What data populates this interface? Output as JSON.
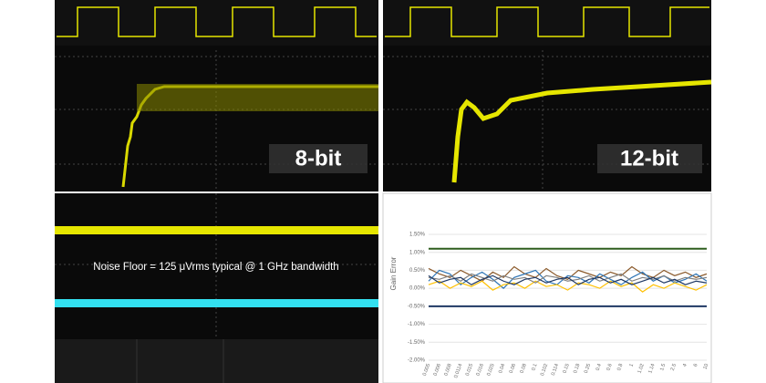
{
  "panels": {
    "top_left": {
      "label": "8-bit"
    },
    "top_right": {
      "label": "12-bit"
    },
    "bottom_left": {
      "caption": "Noise Floor = 125 μVrms typical @ 1 GHz bandwidth"
    }
  },
  "chart_data": {
    "type": "line",
    "ylabel": "Gain Error",
    "ylim": [
      -2.0,
      1.5
    ],
    "yticks": [
      {
        "value": 1.5,
        "label": "1.50%"
      },
      {
        "value": 1.0,
        "label": "1.00%"
      },
      {
        "value": 0.5,
        "label": "0.50%"
      },
      {
        "value": 0.0,
        "label": "0.00%"
      },
      {
        "value": -0.5,
        "label": "-0.50%"
      },
      {
        "value": -1.0,
        "label": "-1.00%"
      },
      {
        "value": -1.5,
        "label": "-1.50%"
      },
      {
        "value": -2.0,
        "label": "-2.00%"
      }
    ],
    "categories": [
      "0.005",
      "0.006",
      "0.008",
      "0.0114",
      "0.015",
      "0.016",
      "0.025",
      "0.04",
      "0.06",
      "0.08",
      "0.1",
      "0.102",
      "0.114",
      "0.15",
      "0.18",
      "0.25",
      "0.4",
      "0.6",
      "0.8",
      "1",
      "1.02",
      "1.14",
      "1.5",
      "2.5",
      "4",
      "6",
      "10"
    ],
    "limit_lines": [
      {
        "value": 1.1,
        "color": "#2e5e1e"
      },
      {
        "value": -0.5,
        "color": "#1f3864"
      }
    ],
    "series": [
      {
        "color": "#8b5a2b",
        "values": [
          0.55,
          0.4,
          0.3,
          0.5,
          0.35,
          0.2,
          0.45,
          0.3,
          0.6,
          0.4,
          0.3,
          0.55,
          0.35,
          0.25,
          0.5,
          0.4,
          0.3,
          0.45,
          0.35,
          0.6,
          0.4,
          0.3,
          0.5,
          0.35,
          0.45,
          0.3,
          0.4
        ]
      },
      {
        "color": "#2e75b6",
        "values": [
          0.2,
          0.5,
          0.4,
          0.1,
          0.3,
          0.45,
          0.25,
          0.0,
          0.3,
          0.4,
          0.5,
          0.2,
          0.1,
          0.35,
          0.3,
          0.15,
          0.4,
          0.25,
          0.1,
          0.3,
          0.45,
          0.2,
          0.35,
          0.15,
          0.25,
          0.4,
          0.2
        ]
      },
      {
        "color": "#ffc000",
        "values": [
          0.1,
          0.2,
          0.0,
          0.15,
          0.05,
          0.2,
          -0.05,
          0.1,
          0.15,
          0.0,
          0.2,
          0.05,
          0.1,
          -0.05,
          0.15,
          0.1,
          0.0,
          0.2,
          0.05,
          0.15,
          -0.1,
          0.1,
          0.0,
          0.15,
          0.05,
          -0.05,
          0.1
        ]
      },
      {
        "color": "#7f7f7f",
        "values": [
          0.3,
          0.25,
          0.35,
          0.2,
          0.4,
          0.3,
          0.2,
          0.35,
          0.25,
          0.3,
          0.15,
          0.35,
          0.3,
          0.2,
          0.25,
          0.35,
          0.2,
          0.3,
          0.4,
          0.2,
          0.3,
          0.25,
          0.35,
          0.2,
          0.3,
          0.25,
          0.3
        ]
      },
      {
        "color": "#1f3864",
        "values": [
          0.35,
          0.15,
          0.25,
          0.3,
          0.1,
          0.25,
          0.35,
          0.2,
          0.1,
          0.25,
          0.3,
          0.15,
          0.25,
          0.3,
          0.1,
          0.25,
          0.3,
          0.15,
          0.25,
          0.1,
          0.2,
          0.3,
          0.15,
          0.25,
          0.1,
          0.2,
          0.15
        ]
      }
    ]
  }
}
